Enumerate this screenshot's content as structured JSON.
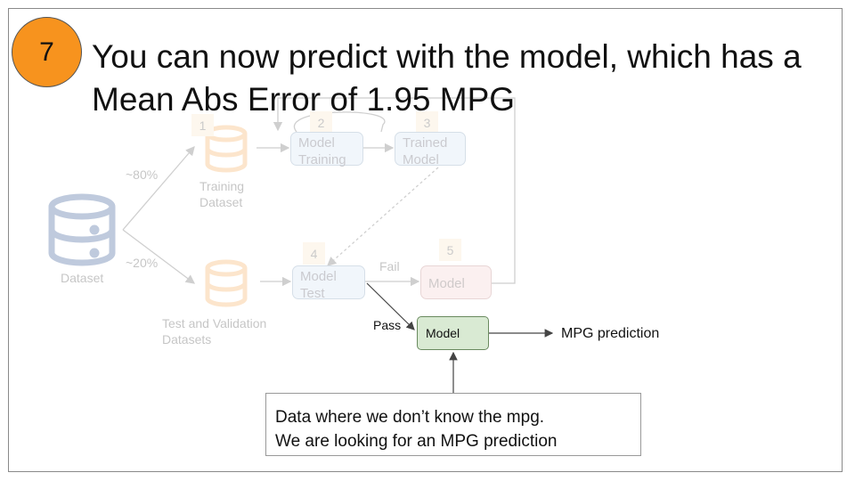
{
  "step": {
    "number": "7"
  },
  "title": {
    "line1": "You can now predict with the model, which has a",
    "line2": "Mean Abs Error of 1.95 MPG"
  },
  "diagram": {
    "dataset_label": "Dataset",
    "split_training_pct": "~80%",
    "split_test_pct": "~20%",
    "training_dataset_label": [
      "Training",
      "Dataset"
    ],
    "test_dataset_label": [
      "Test and Validation",
      "Datasets"
    ],
    "steps": {
      "s1": "1",
      "s2": "2",
      "s3": "3",
      "s4": "4",
      "s5": "5"
    },
    "model_training_label": [
      "Model",
      "Training"
    ],
    "trained_model_label": [
      "Trained",
      "Model"
    ],
    "model_test_label": [
      "Model",
      "Test"
    ],
    "fail_label": "Fail",
    "failed_model_label": "Model",
    "pass_label": "Pass",
    "final_model_label": "Model",
    "output_label": "MPG prediction"
  },
  "note": {
    "line1": "Data where we don’t know the mpg.",
    "line2": "We are looking for an MPG prediction"
  },
  "colors": {
    "badge": "#f7931e",
    "final_model_fill": "#d9ead3",
    "step_box_fill": "#cfe2f3",
    "fail_box_fill": "#f4cccc",
    "dataset_icon": "#1c4587",
    "split_icon": "#f6b26b"
  }
}
